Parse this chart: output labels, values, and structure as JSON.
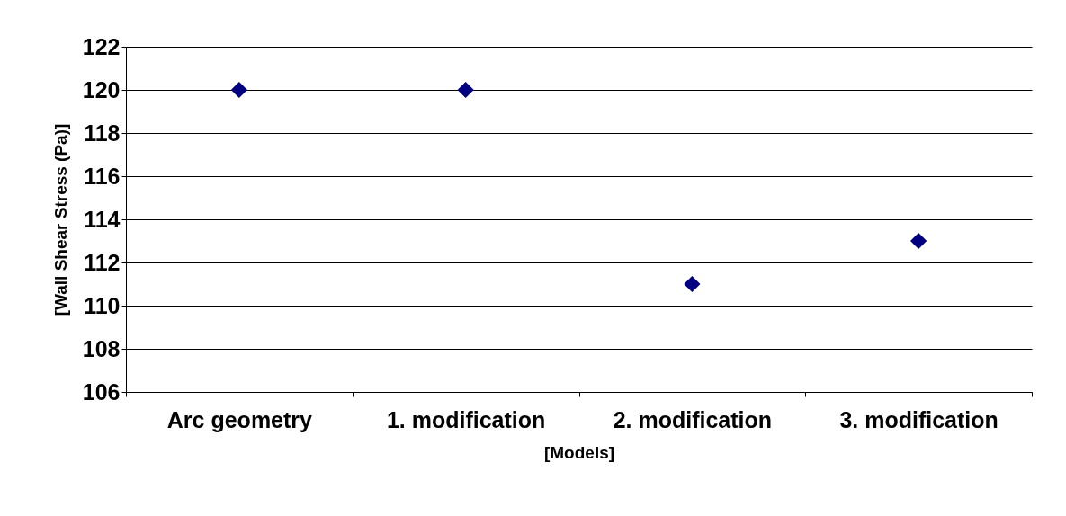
{
  "chart_data": {
    "type": "scatter",
    "xlabel": "[Models]",
    "ylabel": "[Wall Shear Stress (Pa)]",
    "categories": [
      "Arc geometry",
      "1. modification",
      "2. modification",
      "3. modification"
    ],
    "values": [
      120,
      120,
      111,
      113
    ],
    "color": "#000080",
    "ylim": [
      106,
      122
    ],
    "yticks": [
      106,
      108,
      110,
      112,
      114,
      116,
      118,
      120,
      122
    ],
    "grid": "y",
    "marker": "diamond"
  }
}
